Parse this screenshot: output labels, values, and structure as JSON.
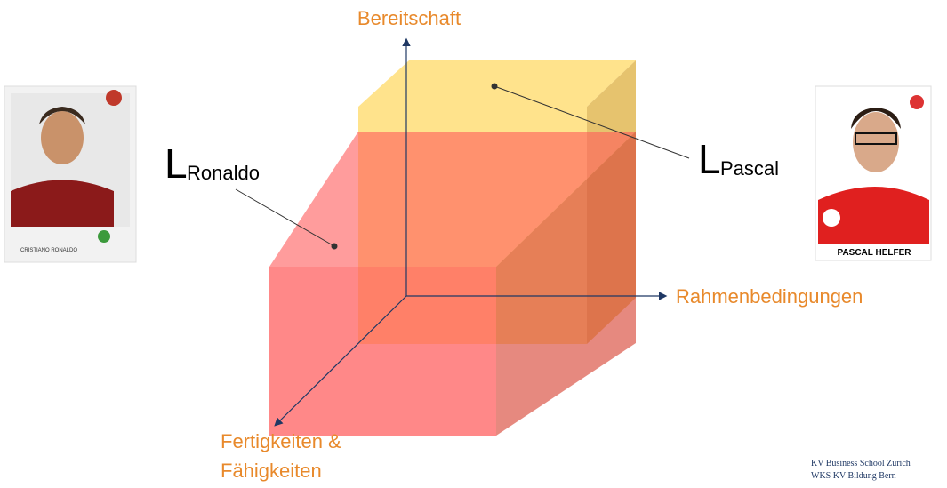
{
  "axes": {
    "y": "Bereitschaft",
    "x": "Rahmenbedingungen",
    "z": [
      "Fertigkeiten &",
      "Fähigkeiten"
    ]
  },
  "labels": {
    "ronaldo": {
      "main": "L",
      "sub": "Ronaldo"
    },
    "pascal": {
      "main": "L",
      "sub": "Pascal"
    }
  },
  "cards": {
    "left": "CRISTIANO RONALDO",
    "right": "PASCAL HELFER"
  },
  "footer": [
    "KV Business School Zürich",
    "WKS KV Bildung Bern"
  ]
}
